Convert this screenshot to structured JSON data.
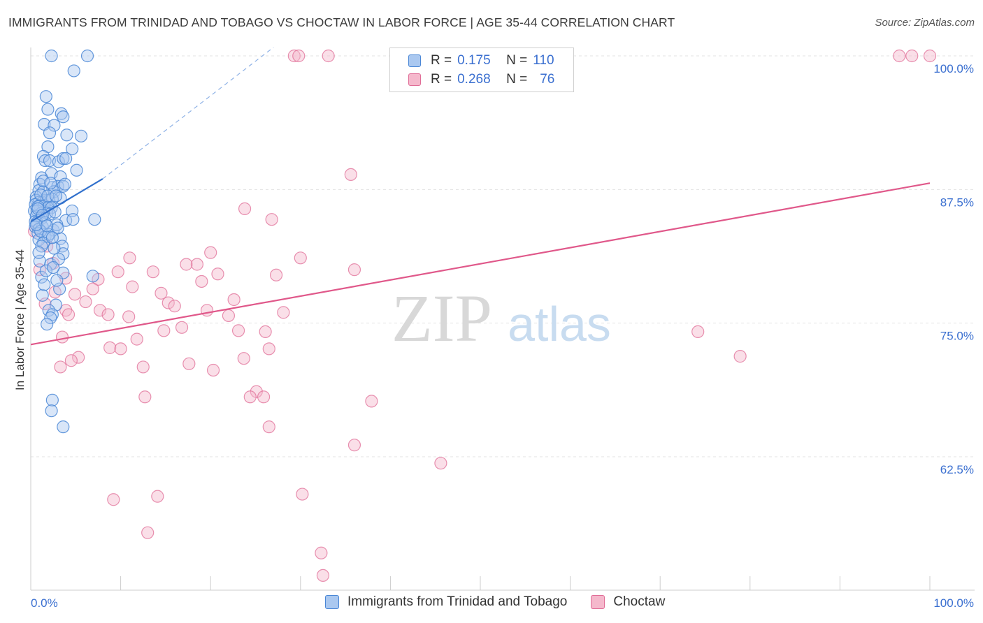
{
  "title": "IMMIGRANTS FROM TRINIDAD AND TOBAGO VS CHOCTAW IN LABOR FORCE | AGE 35-44 CORRELATION CHART",
  "source": "Source: ZipAtlas.com",
  "watermark": {
    "zip": "ZIP",
    "atlas": "atlas"
  },
  "colors": {
    "blue": "#4a87d6",
    "blue_fill": "#aac8f0",
    "pink": "#e06d97",
    "pink_fill": "#f5b8cc",
    "axis_label": "#3a6fd0"
  },
  "legend": {
    "rows": [
      {
        "r_label": "R =",
        "r_value": "0.175",
        "n_label": "N =",
        "n_value": "110"
      },
      {
        "r_label": "R =",
        "r_value": "0.268",
        "n_label": "N =",
        "n_value": "76"
      }
    ]
  },
  "chart_data": {
    "type": "scatter",
    "title": "IMMIGRANTS FROM TRINIDAD AND TOBAGO VS CHOCTAW IN LABOR FORCE | AGE 35-44 CORRELATION CHART",
    "xlabel": "",
    "ylabel": "In Labor Force | Age 35-44",
    "xlim": [
      0,
      100
    ],
    "ylim": [
      51.5,
      101.5
    ],
    "x_tick_labels": [
      "0.0%",
      "100.0%"
    ],
    "y_ticks": [
      62.5,
      75.0,
      87.5,
      100.0
    ],
    "y_tick_labels": [
      "62.5%",
      "75.0%",
      "87.5%",
      "100.0%"
    ],
    "grid": true,
    "legend_position": "top-center",
    "series": [
      {
        "name": "Immigrants from Trinidad and Tobago",
        "r": 0.175,
        "n": 110,
        "trend": {
          "x": [
            0,
            8
          ],
          "y": [
            84.5,
            88.5
          ],
          "dashed_to": {
            "x": 27,
            "y": 100.8
          }
        },
        "points": [
          [
            2.3,
            100
          ],
          [
            6.3,
            100
          ],
          [
            4.8,
            98.6
          ],
          [
            1.7,
            96.2
          ],
          [
            1.9,
            95
          ],
          [
            3.4,
            94.6
          ],
          [
            3.6,
            94.3
          ],
          [
            1.5,
            93.6
          ],
          [
            2.6,
            93.5
          ],
          [
            4.0,
            92.6
          ],
          [
            5.6,
            92.5
          ],
          [
            2.1,
            92.8
          ],
          [
            1.9,
            91.5
          ],
          [
            4.6,
            91.3
          ],
          [
            1.4,
            90.6
          ],
          [
            1.6,
            90.2
          ],
          [
            2.1,
            90.2
          ],
          [
            3.1,
            90.1
          ],
          [
            3.6,
            90.4
          ],
          [
            3.9,
            90.4
          ],
          [
            5.1,
            89.3
          ],
          [
            2.3,
            89.0
          ],
          [
            3.3,
            88.7
          ],
          [
            1.2,
            88.6
          ],
          [
            1.0,
            88.0
          ],
          [
            2.4,
            87.7
          ],
          [
            3.0,
            87.8
          ],
          [
            3.6,
            87.8
          ],
          [
            0.9,
            87.4
          ],
          [
            1.4,
            87.3
          ],
          [
            2.6,
            87.3
          ],
          [
            3.3,
            86.7
          ],
          [
            0.6,
            86.8
          ],
          [
            0.6,
            86.5
          ],
          [
            0.9,
            86.3
          ],
          [
            1.3,
            86.3
          ],
          [
            1.7,
            86.5
          ],
          [
            2.0,
            86.5
          ],
          [
            2.4,
            86.6
          ],
          [
            0.5,
            86.1
          ],
          [
            1.0,
            86.0
          ],
          [
            1.5,
            86.0
          ],
          [
            1.9,
            85.8
          ],
          [
            2.3,
            85.8
          ],
          [
            0.4,
            85.5
          ],
          [
            0.7,
            85.5
          ],
          [
            1.2,
            85.3
          ],
          [
            1.8,
            85.3
          ],
          [
            4.6,
            85.5
          ],
          [
            0.6,
            85.0
          ],
          [
            1.2,
            84.8
          ],
          [
            0.5,
            84.5
          ],
          [
            0.7,
            84.4
          ],
          [
            1.3,
            84.0
          ],
          [
            3.9,
            84.6
          ],
          [
            4.7,
            84.7
          ],
          [
            7.1,
            84.7
          ],
          [
            0.5,
            84.0
          ],
          [
            0.9,
            83.8
          ],
          [
            2.5,
            83.7
          ],
          [
            0.8,
            83.4
          ],
          [
            1.6,
            83.1
          ],
          [
            0.9,
            82.8
          ],
          [
            1.9,
            83.1
          ],
          [
            3.3,
            82.9
          ],
          [
            3.5,
            82.2
          ],
          [
            3.6,
            81.5
          ],
          [
            3.6,
            79.7
          ],
          [
            6.9,
            79.4
          ],
          [
            1.2,
            79.3
          ],
          [
            3.2,
            78.2
          ],
          [
            1.3,
            77.6
          ],
          [
            2.8,
            76.7
          ],
          [
            2.0,
            76.2
          ],
          [
            2.4,
            75.8
          ],
          [
            2.2,
            75.5
          ],
          [
            1.8,
            74.9
          ],
          [
            2.4,
            67.8
          ],
          [
            2.3,
            66.8
          ],
          [
            3.6,
            65.3
          ],
          [
            1.4,
            88.3
          ],
          [
            2.2,
            88.1
          ],
          [
            3.8,
            88.0
          ],
          [
            1.1,
            87.0
          ],
          [
            1.9,
            86.9
          ],
          [
            2.8,
            86.9
          ],
          [
            0.8,
            85.9
          ],
          [
            2.1,
            85.2
          ],
          [
            1.6,
            84.4
          ],
          [
            2.9,
            84.2
          ],
          [
            1.1,
            83.6
          ],
          [
            2.0,
            83.3
          ],
          [
            3.0,
            83.9
          ],
          [
            1.4,
            82.5
          ],
          [
            2.6,
            82.0
          ],
          [
            1.0,
            80.8
          ],
          [
            2.2,
            80.5
          ],
          [
            1.7,
            79.9
          ],
          [
            2.9,
            79.0
          ],
          [
            1.5,
            78.6
          ],
          [
            0.8,
            85.7
          ],
          [
            1.3,
            85.1
          ],
          [
            2.7,
            85.4
          ],
          [
            0.6,
            84.2
          ],
          [
            1.8,
            84.1
          ],
          [
            2.4,
            83.0
          ],
          [
            1.2,
            82.2
          ],
          [
            0.9,
            81.6
          ],
          [
            3.1,
            81.0
          ],
          [
            2.5,
            80.2
          ]
        ]
      },
      {
        "name": "Choctaw",
        "r": 0.268,
        "n": 76,
        "trend": {
          "x": [
            0,
            100
          ],
          "y": [
            73.0,
            88.1
          ]
        },
        "points": [
          [
            29.3,
            100
          ],
          [
            29.8,
            100
          ],
          [
            33.1,
            100
          ],
          [
            96.6,
            100
          ],
          [
            98.0,
            100
          ],
          [
            100,
            100
          ],
          [
            35.6,
            88.9
          ],
          [
            23.8,
            85.7
          ],
          [
            26.8,
            84.7
          ],
          [
            0.4,
            83.6
          ],
          [
            1.8,
            82.2
          ],
          [
            20.0,
            81.6
          ],
          [
            30.0,
            81.1
          ],
          [
            2.5,
            80.6
          ],
          [
            11.0,
            81.1
          ],
          [
            17.3,
            80.5
          ],
          [
            18.5,
            80.5
          ],
          [
            36.0,
            80.0
          ],
          [
            1.0,
            80.0
          ],
          [
            9.7,
            79.8
          ],
          [
            13.6,
            79.8
          ],
          [
            20.8,
            79.6
          ],
          [
            27.3,
            79.5
          ],
          [
            3.9,
            79.2
          ],
          [
            7.5,
            79.1
          ],
          [
            19.0,
            78.9
          ],
          [
            11.3,
            78.4
          ],
          [
            6.9,
            78.2
          ],
          [
            14.5,
            77.8
          ],
          [
            22.6,
            77.2
          ],
          [
            15.3,
            76.9
          ],
          [
            16.0,
            76.6
          ],
          [
            7.7,
            76.2
          ],
          [
            19.6,
            76.2
          ],
          [
            28.1,
            76.0
          ],
          [
            3.9,
            76.2
          ],
          [
            8.6,
            75.8
          ],
          [
            4.2,
            75.8
          ],
          [
            10.9,
            75.6
          ],
          [
            22.0,
            75.7
          ],
          [
            16.8,
            74.6
          ],
          [
            14.8,
            74.3
          ],
          [
            23.1,
            74.3
          ],
          [
            26.1,
            74.2
          ],
          [
            74.2,
            74.2
          ],
          [
            3.5,
            73.7
          ],
          [
            11.8,
            73.5
          ],
          [
            8.8,
            72.7
          ],
          [
            10.0,
            72.6
          ],
          [
            26.5,
            72.6
          ],
          [
            23.7,
            71.7
          ],
          [
            5.3,
            71.8
          ],
          [
            78.9,
            71.9
          ],
          [
            4.5,
            71.5
          ],
          [
            17.6,
            71.2
          ],
          [
            3.3,
            70.9
          ],
          [
            12.5,
            70.9
          ],
          [
            20.3,
            70.6
          ],
          [
            25.1,
            68.6
          ],
          [
            24.4,
            68.1
          ],
          [
            25.9,
            68.1
          ],
          [
            12.7,
            68.1
          ],
          [
            37.9,
            67.7
          ],
          [
            26.5,
            65.3
          ],
          [
            36.0,
            63.6
          ],
          [
            45.6,
            61.9
          ],
          [
            9.2,
            58.5
          ],
          [
            14.1,
            58.8
          ],
          [
            30.2,
            59.0
          ],
          [
            13.0,
            55.4
          ],
          [
            32.3,
            53.5
          ],
          [
            32.5,
            51.4
          ],
          [
            1.6,
            76.8
          ],
          [
            4.9,
            77.7
          ],
          [
            2.7,
            77.9
          ],
          [
            6.1,
            77.0
          ]
        ]
      }
    ]
  }
}
